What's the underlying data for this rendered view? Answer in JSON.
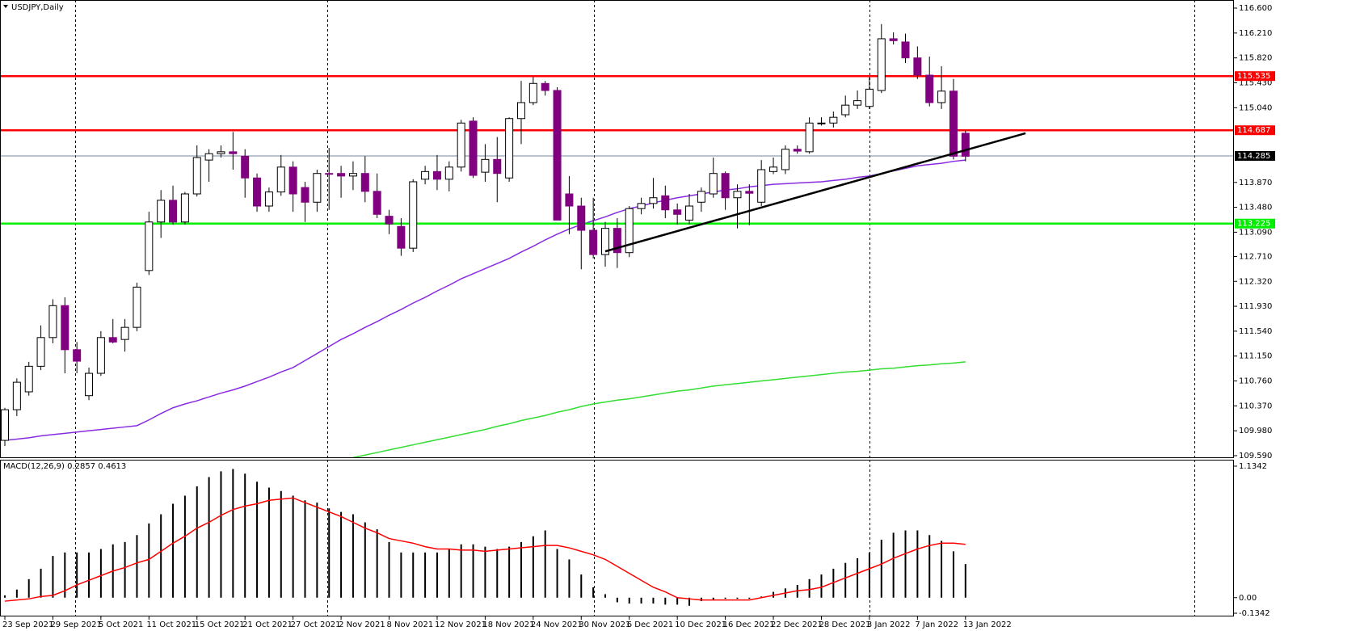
{
  "chart_data": {
    "type": "candlestick",
    "title": "USDJPY,Daily",
    "categories": [
      "23 Sep 2021",
      null,
      null,
      null,
      "29 Sep 2021",
      null,
      null,
      null,
      "5 Oct 2021",
      null,
      null,
      null,
      "11 Oct 2021",
      null,
      null,
      null,
      "15 Oct 2021",
      null,
      null,
      null,
      "21 Oct 2021",
      null,
      null,
      null,
      "27 Oct 2021",
      null,
      null,
      null,
      "2 Nov 2021",
      null,
      null,
      null,
      "8 Nov 2021",
      null,
      null,
      null,
      "12 Nov 2021",
      null,
      null,
      null,
      "18 Nov 2021",
      null,
      null,
      null,
      "24 Nov 2021",
      null,
      null,
      null,
      "30 Nov 2021",
      null,
      null,
      null,
      "6 Dec 2021",
      null,
      null,
      null,
      "10 Dec 2021",
      null,
      null,
      null,
      "16 Dec 2021",
      null,
      null,
      null,
      "22 Dec 2021",
      null,
      null,
      null,
      "28 Dec 2021",
      null,
      null,
      null,
      "3 Jan 2022",
      null,
      null,
      null,
      "7 Jan 2022",
      null,
      null,
      null,
      "13 Jan 2022"
    ],
    "open": [
      109.83,
      110.31,
      110.59,
      110.99,
      111.44,
      111.94,
      111.25,
      110.53,
      110.88,
      111.44,
      111.41,
      111.6,
      112.49,
      113.25,
      113.59,
      113.25,
      113.69,
      114.22,
      114.32,
      114.35,
      114.28,
      113.94,
      113.5,
      113.72,
      114.11,
      113.79,
      113.56,
      114.01,
      114.01,
      113.97,
      114.01,
      113.73,
      113.34,
      113.18,
      112.84,
      113.92,
      114.04,
      113.92,
      114.11,
      114.83,
      114.03,
      114.23,
      113.94,
      114.87,
      115.12,
      115.42,
      115.31,
      113.69,
      113.5,
      113.12,
      112.74,
      113.15,
      112.77,
      113.46,
      113.54,
      113.66,
      113.44,
      113.28,
      113.56,
      113.69,
      114.01,
      113.63,
      113.73,
      113.56,
      114.04,
      114.07,
      114.39,
      114.35,
      114.8,
      114.8,
      114.93,
      115.08,
      115.06,
      115.31,
      116.12,
      116.07,
      115.82,
      115.55,
      115.12,
      115.3,
      114.64
    ],
    "high": [
      110.34,
      110.8,
      111.06,
      111.63,
      112.04,
      112.07,
      111.37,
      110.97,
      111.54,
      111.73,
      111.73,
      112.3,
      113.41,
      113.75,
      113.82,
      113.72,
      114.45,
      114.39,
      114.45,
      114.66,
      114.39,
      114.01,
      113.79,
      114.3,
      114.2,
      113.88,
      114.07,
      114.41,
      114.13,
      114.2,
      114.28,
      114.01,
      113.44,
      113.31,
      113.92,
      114.13,
      114.3,
      114.2,
      114.85,
      114.89,
      114.47,
      114.58,
      114.89,
      115.46,
      115.52,
      115.46,
      115.36,
      113.97,
      113.63,
      113.63,
      113.25,
      113.31,
      113.5,
      113.63,
      113.94,
      113.82,
      113.54,
      113.69,
      113.79,
      114.26,
      114.04,
      113.84,
      113.84,
      114.22,
      114.26,
      114.45,
      114.45,
      114.89,
      114.89,
      114.98,
      115.23,
      115.31,
      115.52,
      116.35,
      116.22,
      116.2,
      116.0,
      115.84,
      115.69,
      115.49,
      114.68
    ],
    "low": [
      109.74,
      110.21,
      110.53,
      110.93,
      111.35,
      110.88,
      110.88,
      110.46,
      110.84,
      111.35,
      111.22,
      111.54,
      112.42,
      113.0,
      113.21,
      113.21,
      113.65,
      113.88,
      114.26,
      114.07,
      113.63,
      113.41,
      113.41,
      113.66,
      113.41,
      113.25,
      113.41,
      113.44,
      113.63,
      113.75,
      113.56,
      113.31,
      113.06,
      112.72,
      112.78,
      113.84,
      113.75,
      113.73,
      114.04,
      113.94,
      113.88,
      113.56,
      113.88,
      114.47,
      115.08,
      115.23,
      113.28,
      113.06,
      112.51,
      112.68,
      112.55,
      112.53,
      112.7,
      113.37,
      113.46,
      113.31,
      113.21,
      113.21,
      113.41,
      113.63,
      113.44,
      113.15,
      113.2,
      113.5,
      114.0,
      114.0,
      114.32,
      114.32,
      114.76,
      114.73,
      114.89,
      115.02,
      115.02,
      115.27,
      116.03,
      115.74,
      115.49,
      115.06,
      115.02,
      114.23,
      114.2
    ],
    "close": [
      110.31,
      110.74,
      110.99,
      111.44,
      111.94,
      111.25,
      111.07,
      110.88,
      111.44,
      111.37,
      111.6,
      112.23,
      113.25,
      113.59,
      113.25,
      113.69,
      114.26,
      114.32,
      114.35,
      114.32,
      113.94,
      113.5,
      113.72,
      114.11,
      113.69,
      113.56,
      114.01,
      114.0,
      113.97,
      114.01,
      113.73,
      113.37,
      113.22,
      112.84,
      113.88,
      114.04,
      113.92,
      114.11,
      114.8,
      113.98,
      114.23,
      114.01,
      114.87,
      115.12,
      115.42,
      115.31,
      113.28,
      113.5,
      113.12,
      112.74,
      113.15,
      112.77,
      113.46,
      113.54,
      113.63,
      113.44,
      113.37,
      113.5,
      113.73,
      114.01,
      113.63,
      113.73,
      113.7,
      114.07,
      114.11,
      114.39,
      114.36,
      114.8,
      114.8,
      114.89,
      115.08,
      115.15,
      115.33,
      116.12,
      116.09,
      115.82,
      115.55,
      115.12,
      115.3,
      114.28,
      114.28
    ],
    "up_color": "#ffffff",
    "down_color": "#800080",
    "ylim": [
      109.552,
      116.727
    ],
    "yticks": [
      {
        "value": 116.6,
        "label": "116.600"
      },
      {
        "value": 116.21,
        "label": "116.210"
      },
      {
        "value": 115.82,
        "label": "115.820"
      },
      {
        "value": 115.43,
        "label": "115.430"
      },
      {
        "value": 115.04,
        "label": "115.040"
      },
      {
        "value": 113.87,
        "label": "113.870"
      },
      {
        "value": 113.48,
        "label": "113.480"
      },
      {
        "value": 113.09,
        "label": "113.090"
      },
      {
        "value": 112.71,
        "label": "112.710"
      },
      {
        "value": 112.32,
        "label": "112.320"
      },
      {
        "value": 111.93,
        "label": "111.930"
      },
      {
        "value": 111.54,
        "label": "111.540"
      },
      {
        "value": 111.15,
        "label": "111.150"
      },
      {
        "value": 110.76,
        "label": "110.760"
      },
      {
        "value": 110.37,
        "label": "110.370"
      },
      {
        "value": 109.98,
        "label": "109.980"
      },
      {
        "value": 109.59,
        "label": "109.590"
      }
    ],
    "overlays": [
      {
        "color": "#8a2be2",
        "values": [
          109.83,
          109.85,
          109.87,
          109.9,
          109.92,
          109.94,
          109.96,
          109.98,
          110.0,
          110.02,
          110.04,
          110.06,
          110.15,
          110.25,
          110.34,
          110.4,
          110.45,
          110.51,
          110.57,
          110.62,
          110.68,
          110.75,
          110.82,
          110.9,
          110.97,
          111.08,
          111.19,
          111.3,
          111.41,
          111.5,
          111.6,
          111.69,
          111.79,
          111.88,
          111.98,
          112.07,
          112.17,
          112.26,
          112.36,
          112.44,
          112.52,
          112.6,
          112.68,
          112.78,
          112.87,
          112.97,
          113.06,
          113.14,
          113.21,
          113.27,
          113.33,
          113.4,
          113.46,
          113.5,
          113.55,
          113.59,
          113.63,
          113.66,
          113.69,
          113.72,
          113.75,
          113.77,
          113.8,
          113.82,
          113.84,
          113.85,
          113.86,
          113.87,
          113.88,
          113.9,
          113.92,
          113.95,
          113.97,
          114.01,
          114.05,
          114.09,
          114.13,
          114.15,
          114.17,
          114.2,
          114.22
        ]
      },
      {
        "color": "#33dd33",
        "values": [
          null,
          null,
          null,
          null,
          null,
          null,
          null,
          null,
          null,
          null,
          null,
          null,
          null,
          null,
          null,
          null,
          null,
          null,
          null,
          null,
          null,
          null,
          null,
          null,
          null,
          null,
          null,
          null,
          null,
          109.56,
          109.6,
          109.64,
          109.68,
          109.72,
          109.76,
          109.8,
          109.84,
          109.88,
          109.92,
          109.96,
          110.0,
          110.05,
          110.09,
          110.14,
          110.18,
          110.22,
          110.27,
          110.31,
          110.36,
          110.4,
          110.43,
          110.46,
          110.48,
          110.51,
          110.54,
          110.57,
          110.6,
          110.62,
          110.65,
          110.68,
          110.7,
          110.72,
          110.74,
          110.76,
          110.78,
          110.8,
          110.82,
          110.84,
          110.86,
          110.88,
          110.9,
          110.91,
          110.93,
          110.95,
          110.96,
          110.98,
          111.0,
          111.01,
          111.03,
          111.04,
          111.06
        ]
      }
    ],
    "levels": [
      {
        "value": 115.535,
        "color": "#ff0000"
      },
      {
        "value": 114.687,
        "color": "#ff0000"
      },
      {
        "value": 113.225,
        "color": "#00ee00"
      },
      {
        "value": 114.285,
        "color": "#000000"
      }
    ],
    "trendline": {
      "x": [
        50,
        85
      ],
      "values": [
        112.79,
        114.64
      ],
      "color": "#000000"
    },
    "macd": {
      "title": "MACD(12,26,9) 0.2857 0.4613",
      "ylim": [
        -0.162,
        1.19
      ],
      "yticks": [
        1.1342,
        {
          "value": 0,
          "label": "0.00"
        },
        -0.1342
      ],
      "histogram": [
        0.02,
        0.07,
        0.16,
        0.25,
        0.36,
        0.39,
        0.39,
        0.39,
        0.42,
        0.46,
        0.48,
        0.54,
        0.64,
        0.72,
        0.81,
        0.88,
        0.96,
        1.04,
        1.09,
        1.11,
        1.07,
        1.0,
        0.95,
        0.92,
        0.88,
        0.84,
        0.82,
        0.77,
        0.74,
        0.72,
        0.65,
        0.59,
        0.48,
        0.39,
        0.39,
        0.39,
        0.39,
        0.42,
        0.46,
        0.46,
        0.44,
        0.42,
        0.44,
        0.48,
        0.53,
        0.58,
        0.42,
        0.33,
        0.2,
        0.09,
        0.03,
        -0.04,
        -0.05,
        -0.05,
        -0.05,
        -0.06,
        -0.06,
        -0.07,
        -0.03,
        -0.02,
        -0.01,
        -0.01,
        -0.01,
        0.01,
        0.05,
        0.08,
        0.11,
        0.16,
        0.2,
        0.25,
        0.3,
        0.34,
        0.39,
        0.5,
        0.56,
        0.58,
        0.58,
        0.54,
        0.49,
        0.4,
        0.29
      ],
      "histogram_color": "#000000",
      "signal": [
        -0.03,
        -0.02,
        -0.01,
        0.01,
        0.02,
        0.06,
        0.11,
        0.15,
        0.19,
        0.23,
        0.26,
        0.3,
        0.33,
        0.4,
        0.47,
        0.53,
        0.6,
        0.65,
        0.71,
        0.76,
        0.79,
        0.81,
        0.84,
        0.85,
        0.86,
        0.82,
        0.78,
        0.74,
        0.7,
        0.65,
        0.6,
        0.56,
        0.51,
        0.49,
        0.47,
        0.44,
        0.42,
        0.42,
        0.41,
        0.41,
        0.4,
        0.41,
        0.42,
        0.43,
        0.44,
        0.45,
        0.45,
        0.43,
        0.4,
        0.37,
        0.33,
        0.27,
        0.21,
        0.15,
        0.09,
        0.05,
        0.0,
        -0.01,
        -0.02,
        -0.02,
        -0.02,
        -0.02,
        -0.02,
        0.0,
        0.02,
        0.04,
        0.06,
        0.07,
        0.09,
        0.13,
        0.17,
        0.21,
        0.25,
        0.29,
        0.34,
        0.38,
        0.42,
        0.45,
        0.47,
        0.47,
        0.46
      ],
      "signal_color": "#ff0000"
    }
  }
}
